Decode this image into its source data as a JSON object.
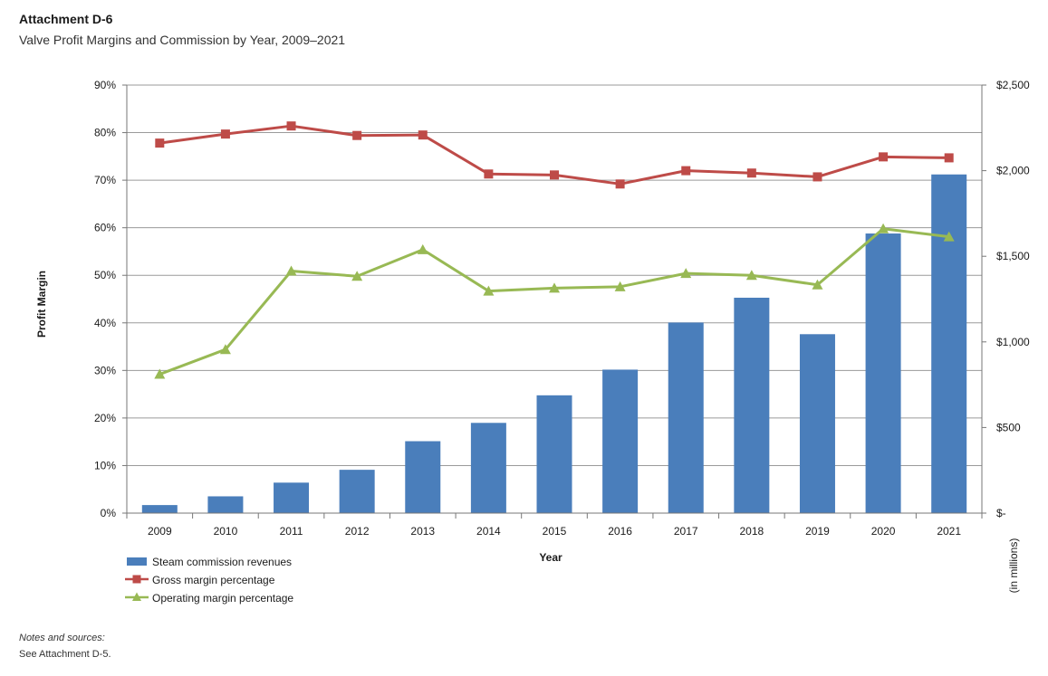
{
  "header": {
    "label": "Attachment D-6",
    "subtitle": "Valve Profit Margins and Commission by Year, 2009–2021"
  },
  "notes": {
    "label": "Notes and sources:",
    "text": "See Attachment D-5."
  },
  "colors": {
    "bar": "#4a7ebb",
    "gross": "#be4b48",
    "operating": "#98b954",
    "grid": "#9a9a9a"
  },
  "chart_data": {
    "type": "bar",
    "xlabel": "Year",
    "ylabel_left": "Profit Margin",
    "ylabel_right": "(in millions)",
    "categories": [
      "2009",
      "2010",
      "2011",
      "2012",
      "2013",
      "2014",
      "2015",
      "2016",
      "2017",
      "2018",
      "2019",
      "2020",
      "2021"
    ],
    "left_axis": {
      "ylim": [
        0,
        90
      ],
      "ticks": [
        0,
        10,
        20,
        30,
        40,
        50,
        60,
        70,
        80,
        90
      ],
      "tick_labels": [
        "0%",
        "10%",
        "20%",
        "30%",
        "40%",
        "50%",
        "60%",
        "70%",
        "80%",
        "90%"
      ]
    },
    "right_axis": {
      "ylim": [
        0,
        2500
      ],
      "ticks": [
        0,
        500,
        1000,
        1500,
        2000,
        2500
      ],
      "tick_labels": [
        "$-",
        "$500",
        "$1,000",
        "$1,500",
        "$2,000",
        "$2,500"
      ]
    },
    "grid": true,
    "legend_position": "bottom-left",
    "series": [
      {
        "name": "Steam commission revenues",
        "type": "bar",
        "axis": "right",
        "values": [
          47,
          98,
          178,
          253,
          420,
          527,
          688,
          838,
          1113,
          1258,
          1045,
          1633,
          1978
        ]
      },
      {
        "name": "Gross margin percentage",
        "type": "line",
        "marker": "square",
        "axis": "left",
        "values": [
          77.8,
          79.7,
          81.4,
          79.4,
          79.5,
          71.3,
          71.1,
          69.2,
          72.0,
          71.5,
          70.7,
          74.9,
          74.7
        ]
      },
      {
        "name": "Operating margin percentage",
        "type": "line",
        "marker": "triangle",
        "axis": "left",
        "values": [
          29.2,
          34.4,
          50.9,
          49.8,
          55.4,
          46.7,
          47.3,
          47.6,
          50.4,
          50.0,
          48.0,
          59.8,
          58.1
        ]
      }
    ]
  }
}
